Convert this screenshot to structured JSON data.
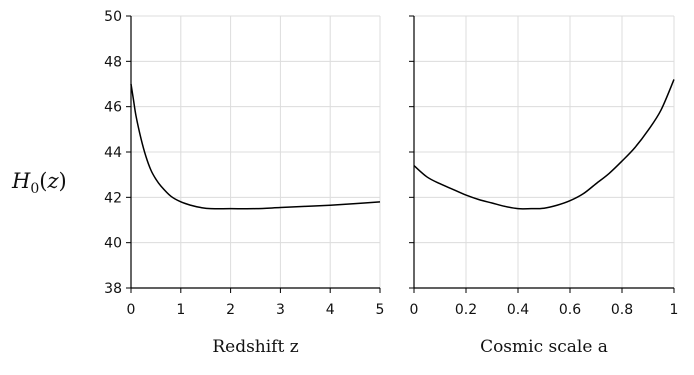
{
  "y_label": {
    "main": "H",
    "subscript": "0",
    "open_paren": "(",
    "variable": "z",
    "close_paren": ")"
  },
  "colors": {
    "line": "#000000",
    "grid": "#dcdcdc",
    "axis": "#000000"
  },
  "chart_data": [
    {
      "type": "line",
      "xlabel": "Redshift z",
      "xlim": [
        0,
        5
      ],
      "ylim": [
        38,
        50
      ],
      "xticks": [
        0,
        1,
        2,
        3,
        4,
        5
      ],
      "yticks": [
        38,
        40,
        42,
        44,
        46,
        48,
        50
      ],
      "grid": true,
      "series": [
        {
          "x": [
            0,
            0.05,
            0.1,
            0.2,
            0.3,
            0.4,
            0.5,
            0.6,
            0.8,
            1.0,
            1.2,
            1.4,
            1.6,
            2.0,
            2.5,
            3.0,
            3.5,
            4.0,
            4.5,
            5.0
          ],
          "y": [
            47.0,
            46.3,
            45.6,
            44.6,
            43.8,
            43.2,
            42.8,
            42.5,
            42.05,
            41.8,
            41.65,
            41.55,
            41.5,
            41.5,
            41.5,
            41.55,
            41.6,
            41.65,
            41.72,
            41.8
          ]
        }
      ]
    },
    {
      "type": "line",
      "xlabel": "Cosmic scale a",
      "xlim": [
        0,
        1
      ],
      "ylim": [
        38,
        50
      ],
      "xticks": [
        0,
        0.2,
        0.4,
        0.6,
        0.8,
        1
      ],
      "yticks": [
        38,
        40,
        42,
        44,
        46,
        48,
        50
      ],
      "grid": true,
      "series": [
        {
          "x": [
            0,
            0.05,
            0.1,
            0.15,
            0.2,
            0.25,
            0.3,
            0.35,
            0.4,
            0.45,
            0.5,
            0.55,
            0.6,
            0.65,
            0.7,
            0.75,
            0.8,
            0.85,
            0.9,
            0.95,
            1.0
          ],
          "y": [
            43.4,
            42.9,
            42.6,
            42.35,
            42.1,
            41.9,
            41.75,
            41.6,
            41.5,
            41.5,
            41.52,
            41.65,
            41.85,
            42.15,
            42.6,
            43.05,
            43.6,
            44.2,
            44.95,
            45.85,
            47.2
          ]
        }
      ]
    }
  ]
}
